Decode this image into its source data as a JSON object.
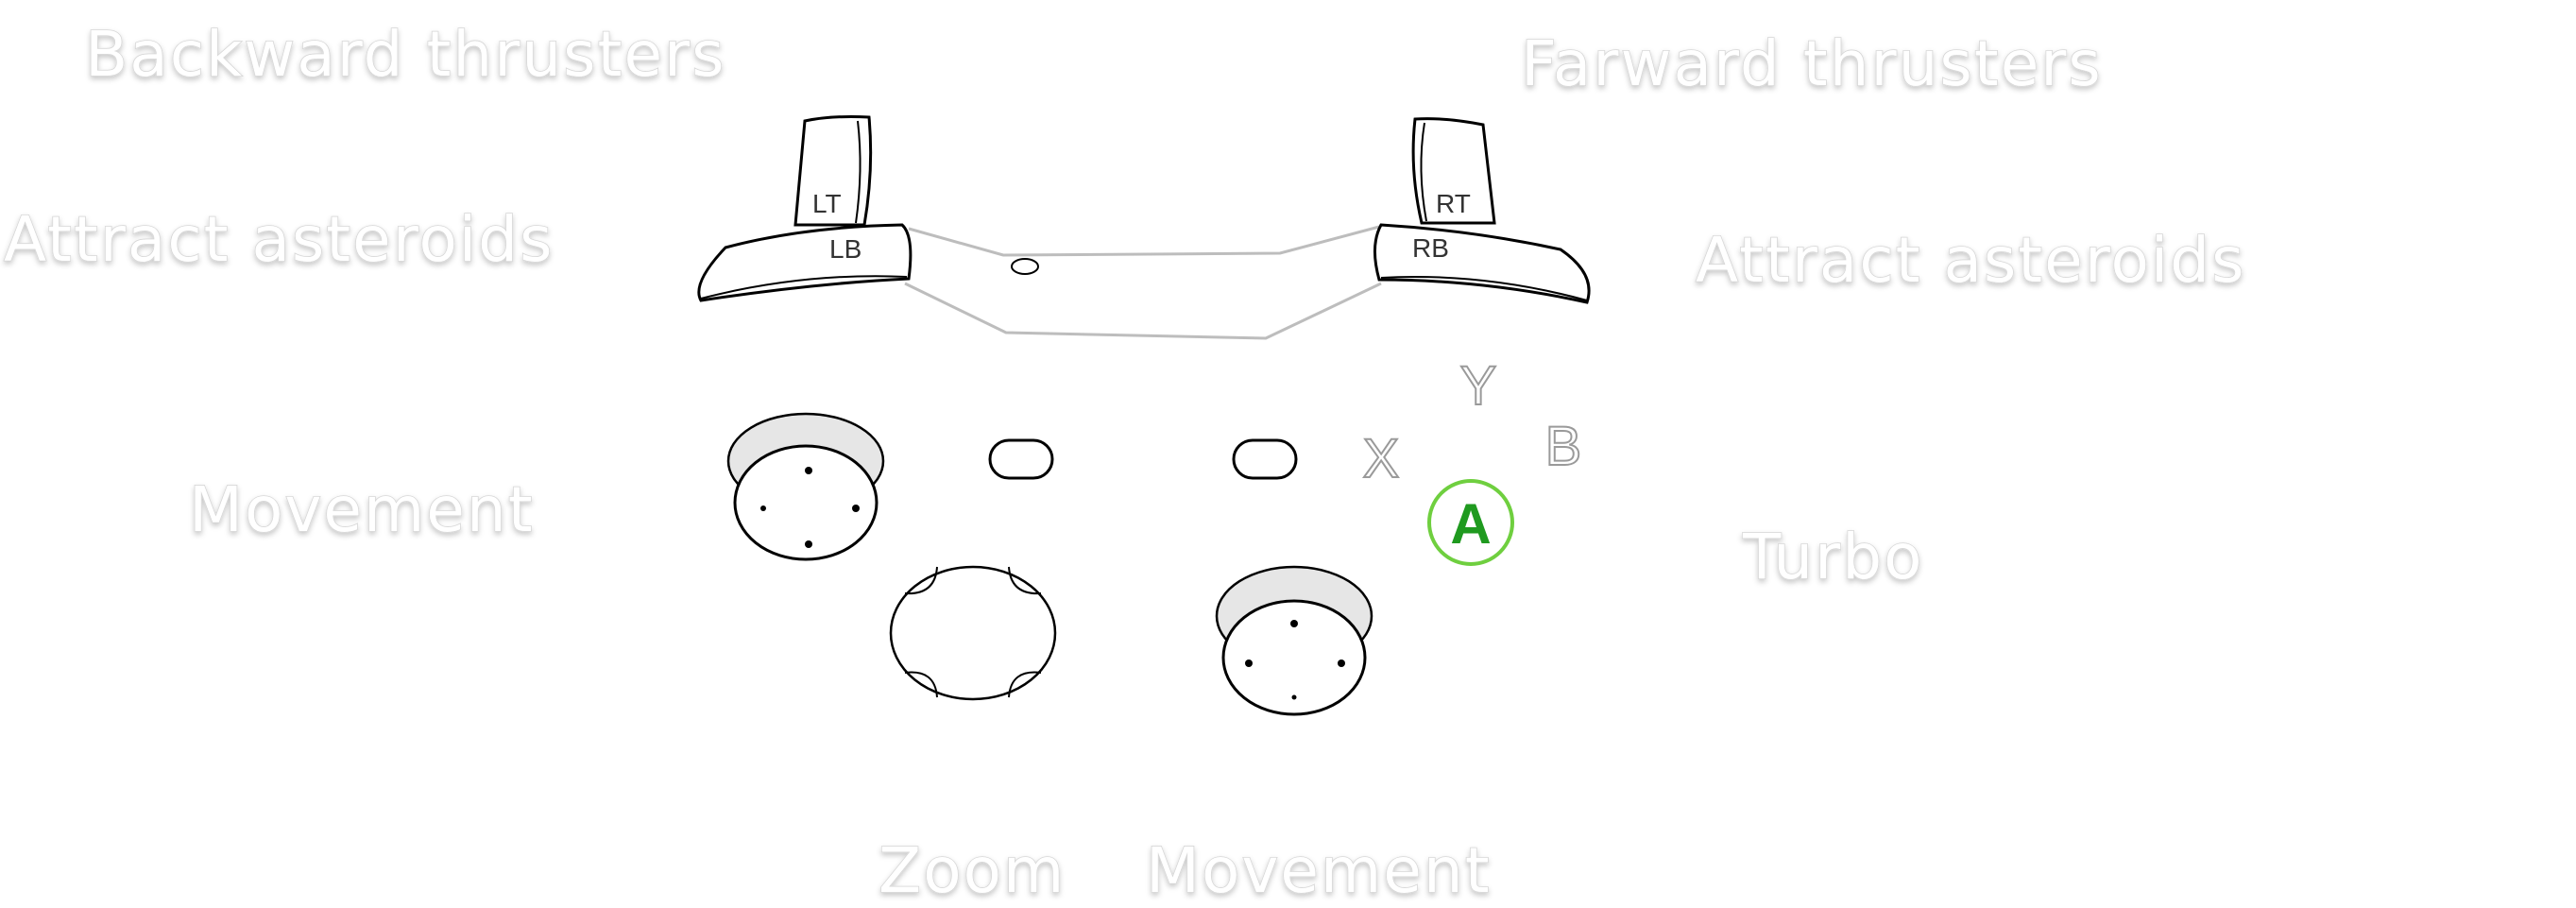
{
  "labels": {
    "lt_action": "Backward thrusters",
    "rt_action": "Farward thrusters",
    "lb_action": "Attract asteroids",
    "rb_action": "Attract asteroids",
    "left_stick_action": "Movement",
    "a_action": "Turbo",
    "dpad_action": "Zoom",
    "right_stick_action": "Movement"
  },
  "buttons": {
    "lt": "LT",
    "rt": "RT",
    "lb": "LB",
    "rb": "RB",
    "y": "Y",
    "x": "X",
    "b": "B",
    "a": "A"
  },
  "colors": {
    "a_button_ring": "#6fcf3f",
    "a_button_text": "#1f9a1f",
    "face_button_outline": "#9a9a9a",
    "controller_body": "#bdbdbd",
    "stick_shadow": "#e6e6e6"
  }
}
